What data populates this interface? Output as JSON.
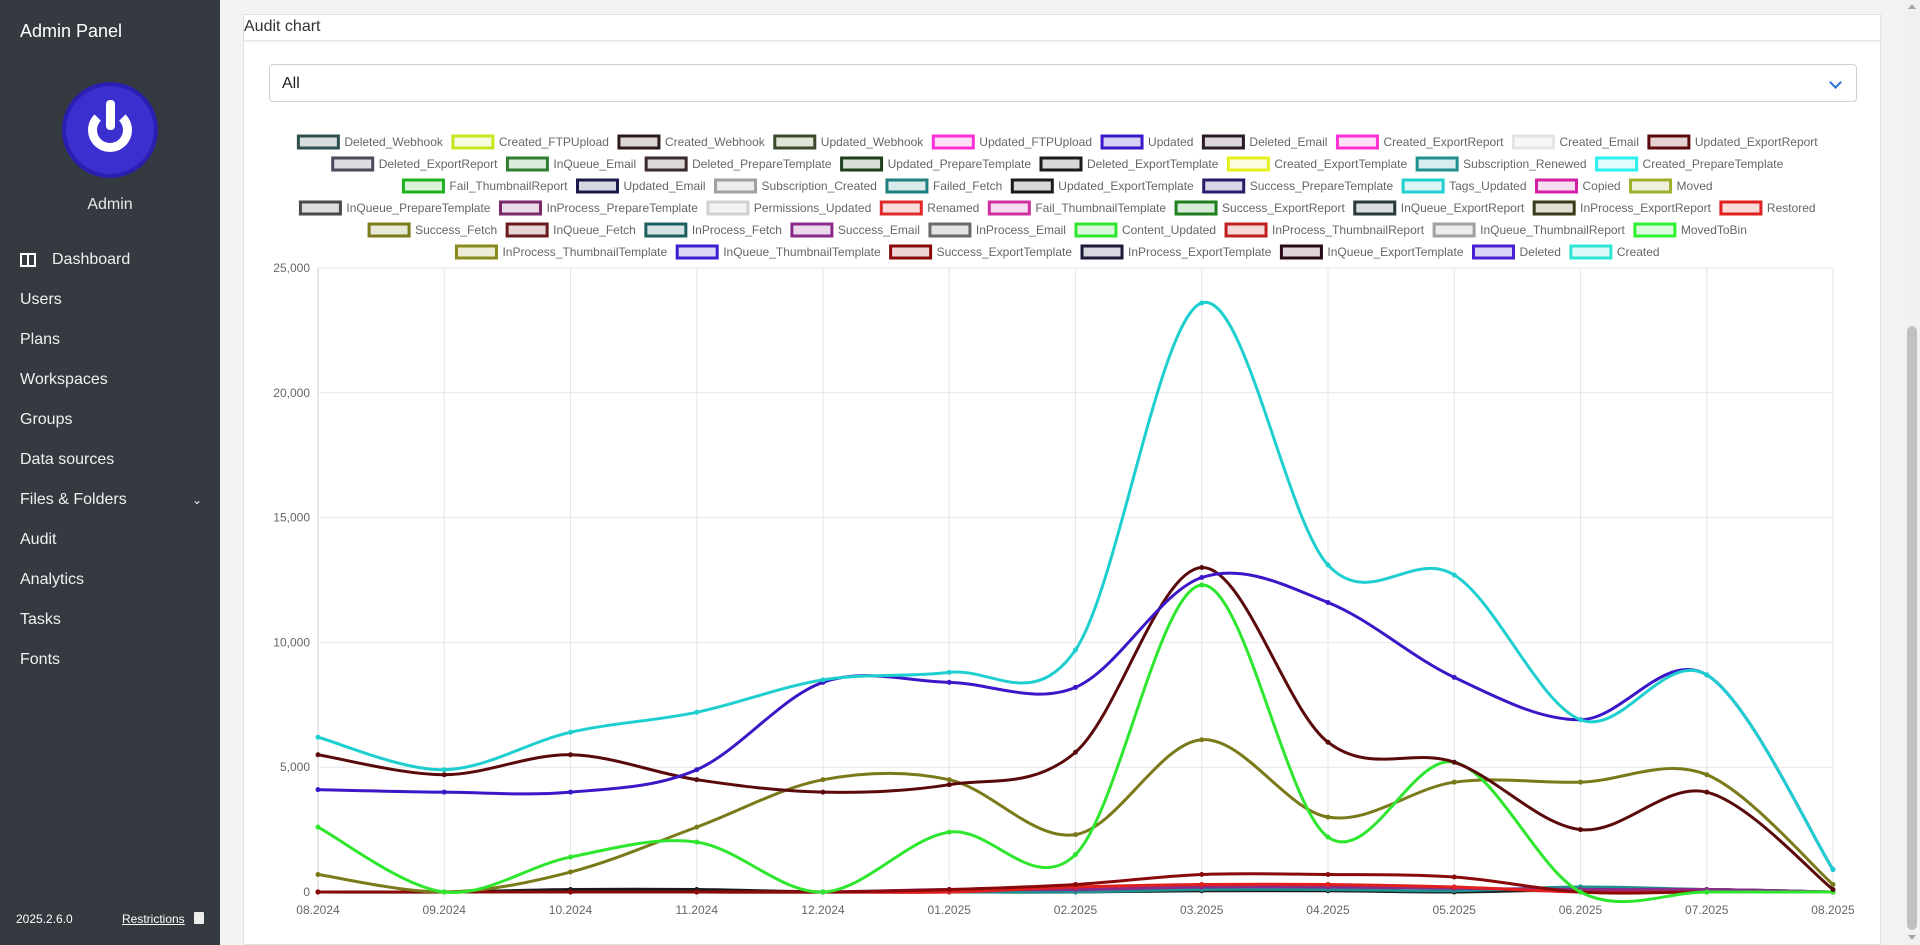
{
  "app": {
    "title": "Admin Panel",
    "user_name": "Admin",
    "version": "2025.2.6.0",
    "restrictions_label": "Restrictions"
  },
  "nav": {
    "items": [
      {
        "label": "Dashboard",
        "icon": "dashboard-icon"
      },
      {
        "label": "Users"
      },
      {
        "label": "Plans"
      },
      {
        "label": "Workspaces"
      },
      {
        "label": "Groups"
      },
      {
        "label": "Data sources"
      },
      {
        "label": "Files & Folders",
        "icon": "chevron-down-icon"
      },
      {
        "label": "Audit"
      },
      {
        "label": "Analytics"
      },
      {
        "label": "Tasks"
      },
      {
        "label": "Fonts"
      }
    ]
  },
  "card": {
    "title": "Audit chart"
  },
  "filter": {
    "selected": "All"
  },
  "chart_data": {
    "type": "line",
    "x": [
      "08.2024",
      "09.2024",
      "10.2024",
      "11.2024",
      "12.2024",
      "01.2025",
      "02.2025",
      "03.2025",
      "04.2025",
      "05.2025",
      "06.2025",
      "07.2025",
      "08.2025"
    ],
    "y_ticks": [
      "0",
      "5,000",
      "10,000",
      "15,000",
      "20,000",
      "25,000"
    ],
    "ylim": [
      0,
      25000
    ],
    "legend_position": "top",
    "grid": true,
    "legend": [
      {
        "name": "Deleted_Webhook",
        "color": "#2f4f4f",
        "fill": "#d8dede"
      },
      {
        "name": "Created_FTPUpload",
        "color": "#c8e61e",
        "fill": "#f6fbe0"
      },
      {
        "name": "Created_Webhook",
        "color": "#2a1a1a",
        "fill": "#ddd6d6"
      },
      {
        "name": "Updated_Webhook",
        "color": "#3a4a2a",
        "fill": "#dfe5d8"
      },
      {
        "name": "Updated_FTPUpload",
        "color": "#ff2fd6",
        "fill": "#ffe1f8"
      },
      {
        "name": "Updated",
        "color": "#3b17c8",
        "fill": "#d6d0f5"
      },
      {
        "name": "Deleted_Email",
        "color": "#2a1a2a",
        "fill": "#ddd6dd"
      },
      {
        "name": "Created_ExportReport",
        "color": "#ff2fd6",
        "fill": "#ffe1f8"
      },
      {
        "name": "Created_Email",
        "color": "#e5e5e5",
        "fill": "#f7f7f7"
      },
      {
        "name": "Updated_ExportReport",
        "color": "#5a0a0a",
        "fill": "#e6d2d2"
      },
      {
        "name": "Deleted_ExportReport",
        "color": "#4a4a5a",
        "fill": "#dcdce2"
      },
      {
        "name": "InQueue_Email",
        "color": "#2e7d32",
        "fill": "#dcecdc"
      },
      {
        "name": "Deleted_PrepareTemplate",
        "color": "#3a2a2a",
        "fill": "#ddd8d8"
      },
      {
        "name": "Updated_PrepareTemplate",
        "color": "#1f3f1f",
        "fill": "#d8e0d8"
      },
      {
        "name": "Deleted_ExportTemplate",
        "color": "#1a1a1a",
        "fill": "#d8d8d8"
      },
      {
        "name": "Created_ExportTemplate",
        "color": "#e6f01e",
        "fill": "#fbfce0"
      },
      {
        "name": "Subscription_Renewed",
        "color": "#1f8f8f",
        "fill": "#d8eded"
      },
      {
        "name": "Created_PrepareTemplate",
        "color": "#2ff0f0",
        "fill": "#e0fcfc"
      },
      {
        "name": "Fail_ThumbnailReport",
        "color": "#1fb01f",
        "fill": "#dbf3db"
      },
      {
        "name": "Updated_Email",
        "color": "#1a1a4a",
        "fill": "#d8d8e2"
      },
      {
        "name": "Subscription_Created",
        "color": "#a0a0a0",
        "fill": "#ececec"
      },
      {
        "name": "Failed_Fetch",
        "color": "#1f7f7f",
        "fill": "#d8eaea"
      },
      {
        "name": "Updated_ExportTemplate",
        "color": "#1a1a1a",
        "fill": "#d8d8d8"
      },
      {
        "name": "Success_PrepareTemplate",
        "color": "#2a1a6a",
        "fill": "#dad6e8"
      },
      {
        "name": "Tags_Updated",
        "color": "#1fcfcf",
        "fill": "#dcf6f6"
      },
      {
        "name": "Copied",
        "color": "#d41fa4",
        "fill": "#f6dcef"
      },
      {
        "name": "Moved",
        "color": "#a0b02a",
        "fill": "#eef1dc"
      },
      {
        "name": "InQueue_PrepareTemplate",
        "color": "#4a4a4a",
        "fill": "#dddddd"
      },
      {
        "name": "InProcess_PrepareTemplate",
        "color": "#7a2a6a",
        "fill": "#eadbe6"
      },
      {
        "name": "Permissions_Updated",
        "color": "#d0d0d0",
        "fill": "#f3f3f3"
      },
      {
        "name": "Renamed",
        "color": "#e02a2a",
        "fill": "#fbdcdc"
      },
      {
        "name": "Fail_ThumbnailTemplate",
        "color": "#d02fa0",
        "fill": "#f8dcef"
      },
      {
        "name": "Success_ExportReport",
        "color": "#1f7f1f",
        "fill": "#d8ead8"
      },
      {
        "name": "InQueue_ExportReport",
        "color": "#2a3a3a",
        "fill": "#d8dddd"
      },
      {
        "name": "InProcess_ExportReport",
        "color": "#3a3a1a",
        "fill": "#e0e0d6"
      },
      {
        "name": "Restored",
        "color": "#e01f1f",
        "fill": "#fbdada"
      },
      {
        "name": "Success_Fetch",
        "color": "#7a7a1a",
        "fill": "#e8e8d6"
      },
      {
        "name": "InQueue_Fetch",
        "color": "#6a1a1a",
        "fill": "#e6d6d6"
      },
      {
        "name": "InProcess_Fetch",
        "color": "#1f5f5f",
        "fill": "#d8e4e4"
      },
      {
        "name": "Success_Email",
        "color": "#8a2a8a",
        "fill": "#ecdaec"
      },
      {
        "name": "InProcess_Email",
        "color": "#6a6a6a",
        "fill": "#e2e2e2"
      },
      {
        "name": "Content_Updated",
        "color": "#2fe62f",
        "fill": "#dcf8dc"
      },
      {
        "name": "InProcess_ThumbnailReport",
        "color": "#c01f1f",
        "fill": "#f6d8d8"
      },
      {
        "name": "InQueue_ThumbnailReport",
        "color": "#a0a0a0",
        "fill": "#ececec"
      },
      {
        "name": "MovedToBin",
        "color": "#2ff02f",
        "fill": "#ddfcdd"
      },
      {
        "name": "InProcess_ThumbnailTemplate",
        "color": "#8a8a1a",
        "fill": "#ececd8"
      },
      {
        "name": "InQueue_ThumbnailTemplate",
        "color": "#3a1fd0",
        "fill": "#dcd8f6"
      },
      {
        "name": "Success_ExportTemplate",
        "color": "#8a0a0a",
        "fill": "#efd6d6"
      },
      {
        "name": "InProcess_ExportTemplate",
        "color": "#1a1a3a",
        "fill": "#d8d8e0"
      },
      {
        "name": "InQueue_ExportTemplate",
        "color": "#2a0a1a",
        "fill": "#dfd4da"
      },
      {
        "name": "Deleted",
        "color": "#4a1fd0",
        "fill": "#dcd4f6"
      },
      {
        "name": "Created",
        "color": "#2fe6d6",
        "fill": "#dcfaf7"
      }
    ],
    "series": [
      {
        "name": "Tags_Updated",
        "color": "#1fcfcf",
        "values": [
          6200,
          4900,
          6400,
          7200,
          8500,
          8800,
          9700,
          23600,
          13100,
          12700,
          6900,
          8700,
          900
        ]
      },
      {
        "name": "Updated",
        "color": "#3b17c8",
        "values": [
          4100,
          4000,
          4000,
          4900,
          8400,
          8400,
          8200,
          12600,
          11600,
          8600,
          6900,
          8700,
          900
        ]
      },
      {
        "name": "Updated_ExportReport",
        "color": "#5a0a0a",
        "values": [
          5500,
          4700,
          5500,
          4500,
          4000,
          4300,
          5600,
          13000,
          6000,
          5200,
          2500,
          4000,
          100
        ]
      },
      {
        "name": "Content_Updated",
        "color": "#2fe62f",
        "values": [
          2600,
          0,
          1400,
          2000,
          0,
          2400,
          1500,
          12300,
          2200,
          5200,
          0,
          0,
          0
        ]
      },
      {
        "name": "Success_Fetch",
        "color": "#7a7a1a",
        "values": [
          700,
          0,
          800,
          2600,
          4500,
          4500,
          2300,
          6100,
          3000,
          4400,
          4400,
          4700,
          300
        ]
      },
      {
        "name": "Success_ExportTemplate",
        "color": "#8a0a0a",
        "values": [
          0,
          0,
          0,
          0,
          0,
          100,
          300,
          700,
          700,
          600,
          0,
          0,
          0
        ]
      },
      {
        "name": "Restored",
        "color": "#e01f1f",
        "values": [
          0,
          0,
          0,
          0,
          0,
          0,
          200,
          300,
          300,
          200,
          0,
          0,
          0
        ]
      },
      {
        "name": "Success_Email",
        "color": "#8a2a8a",
        "values": [
          0,
          0,
          0,
          0,
          0,
          100,
          100,
          200,
          200,
          150,
          100,
          100,
          0
        ]
      },
      {
        "name": "Subscription_Renewed",
        "color": "#1f8f8f",
        "values": [
          0,
          0,
          0,
          0,
          0,
          0,
          0,
          100,
          100,
          50,
          200,
          100,
          0
        ]
      },
      {
        "name": "Deleted_ExportTemplate",
        "color": "#1a1a1a",
        "values": [
          0,
          0,
          100,
          100,
          0,
          0,
          0,
          50,
          50,
          0,
          100,
          100,
          0
        ]
      }
    ]
  }
}
